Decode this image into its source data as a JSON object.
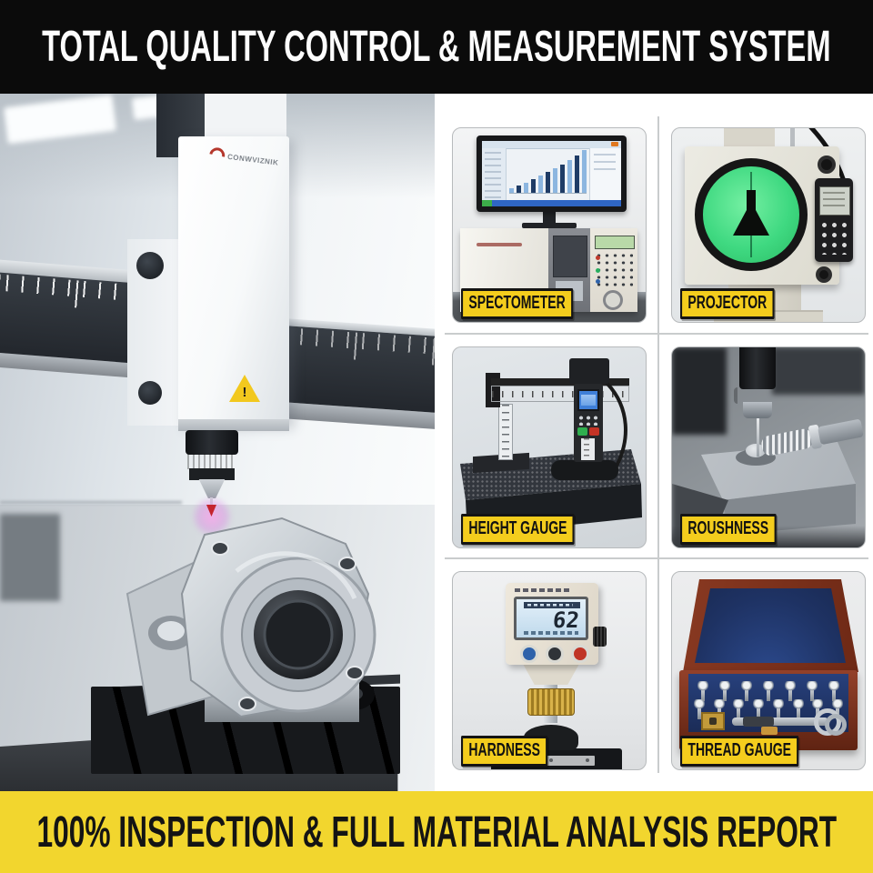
{
  "banner_top": {
    "text": "TOTAL QUALITY CONTROL & MEASUREMENT SYSTEM"
  },
  "banner_bottom": {
    "text": "100% INSPECTION & FULL MATERIAL ANALYSIS REPORT"
  },
  "colors": {
    "banner_bg": "#0b0b0b",
    "banner_fg": "#fdfdfd",
    "bottom_banner_bg": "#f2d62e",
    "badge_yellow": "#f4cd1d",
    "badge_border": "#141414",
    "projector_green": "#3fd981",
    "velvet_blue": "#1e3263",
    "wood_brown": "#8a3a22"
  },
  "cmm_photo": {
    "brand": "CONWVIZNIK",
    "warning_glyph": "!"
  },
  "grid": {
    "cells": [
      {
        "id": "spectometer",
        "label": "SPECTOMETER"
      },
      {
        "id": "projector",
        "label": "PROJECTOR"
      },
      {
        "id": "height-gauge",
        "label": "HEIGHT GAUGE"
      },
      {
        "id": "roughness",
        "label": "ROUSHNESS"
      },
      {
        "id": "hardness",
        "label": "HARDNESS"
      },
      {
        "id": "thread-gauge",
        "label": "THREAD GAUGE"
      }
    ]
  },
  "monitor_chart": {
    "type": "bar",
    "values": [
      5,
      8,
      11,
      15,
      19,
      23,
      27,
      31,
      36,
      41,
      47
    ]
  },
  "hardness": {
    "display_value": "62"
  },
  "thread_gauge": {
    "rows": [
      7,
      8
    ]
  }
}
